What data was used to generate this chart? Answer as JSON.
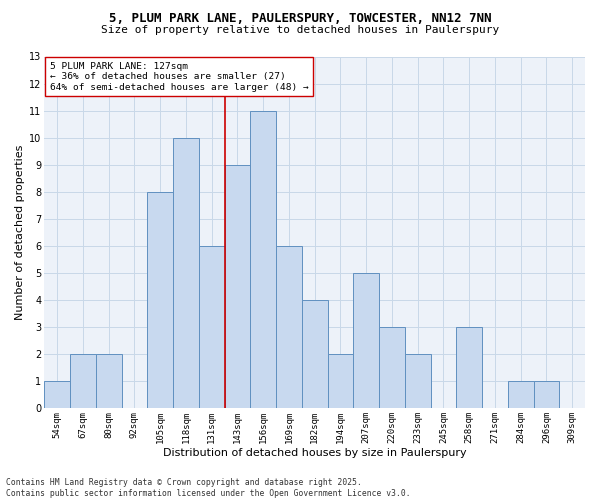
{
  "title1": "5, PLUM PARK LANE, PAULERSPURY, TOWCESTER, NN12 7NN",
  "title2": "Size of property relative to detached houses in Paulerspury",
  "xlabel": "Distribution of detached houses by size in Paulerspury",
  "ylabel": "Number of detached properties",
  "categories": [
    "54sqm",
    "67sqm",
    "80sqm",
    "92sqm",
    "105sqm",
    "118sqm",
    "131sqm",
    "143sqm",
    "156sqm",
    "169sqm",
    "182sqm",
    "194sqm",
    "207sqm",
    "220sqm",
    "233sqm",
    "245sqm",
    "258sqm",
    "271sqm",
    "284sqm",
    "296sqm",
    "309sqm"
  ],
  "values": [
    1,
    2,
    2,
    0,
    8,
    10,
    6,
    9,
    11,
    6,
    4,
    2,
    5,
    3,
    2,
    0,
    3,
    0,
    1,
    1,
    0
  ],
  "bar_color": "#c8d9ef",
  "bar_edge_color": "#6090c0",
  "grid_color": "#c8d8e8",
  "background_color": "#edf2f9",
  "vline_x": 6.5,
  "vline_color": "#cc0000",
  "annotation_text": "5 PLUM PARK LANE: 127sqm\n← 36% of detached houses are smaller (27)\n64% of semi-detached houses are larger (48) →",
  "annotation_box_color": "#ffffff",
  "annotation_box_edge": "#cc0000",
  "ylim": [
    0,
    13
  ],
  "yticks": [
    0,
    1,
    2,
    3,
    4,
    5,
    6,
    7,
    8,
    9,
    10,
    11,
    12,
    13
  ],
  "footer": "Contains HM Land Registry data © Crown copyright and database right 2025.\nContains public sector information licensed under the Open Government Licence v3.0.",
  "title_fontsize": 9,
  "subtitle_fontsize": 8,
  "axis_label_fontsize": 8,
  "tick_fontsize": 6.5,
  "annotation_fontsize": 6.8,
  "footer_fontsize": 5.8
}
